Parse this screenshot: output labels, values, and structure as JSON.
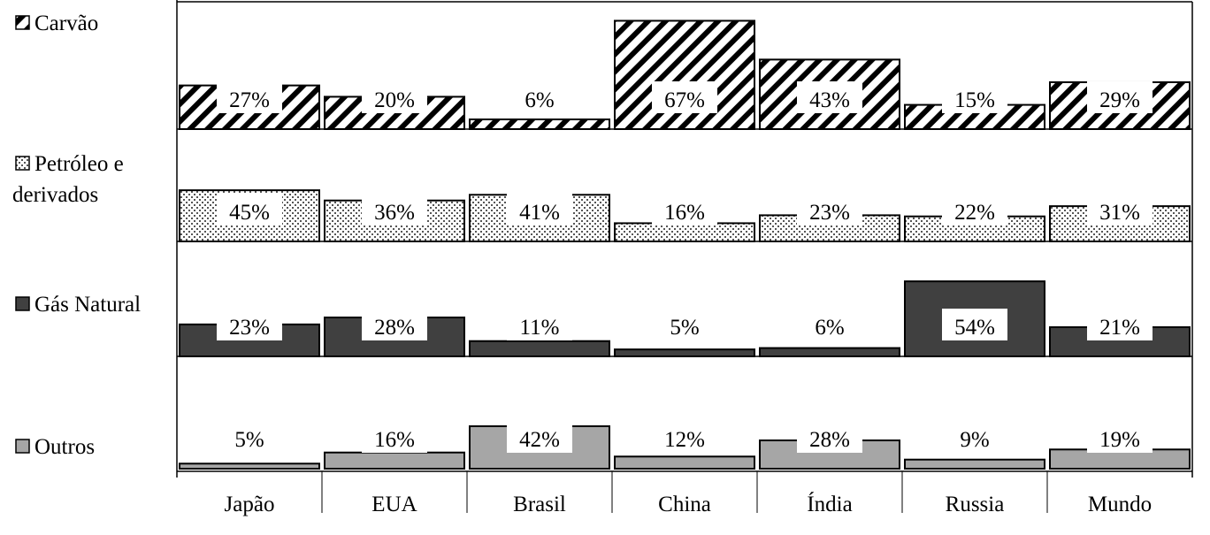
{
  "chart_data": {
    "type": "bar",
    "layout": "small-multiples",
    "categories": [
      "Japão",
      "EUA",
      "Brasil",
      "China",
      "Índia",
      "Russia",
      "Mundo"
    ],
    "series": [
      {
        "name": "Carvão",
        "values": [
          27,
          20,
          6,
          67,
          43,
          15,
          29
        ],
        "labels": [
          "27%",
          "20%",
          "6%",
          "67%",
          "43%",
          "15%",
          "29%"
        ],
        "pattern": "diagonal-hatch",
        "color": "#000000"
      },
      {
        "name": "Petróleo e derivados",
        "values": [
          45,
          36,
          41,
          16,
          23,
          22,
          31
        ],
        "labels": [
          "45%",
          "36%",
          "41%",
          "16%",
          "23%",
          "22%",
          "31%"
        ],
        "pattern": "dots",
        "color": "#000000"
      },
      {
        "name": "Gás Natural",
        "values": [
          23,
          28,
          11,
          5,
          6,
          54,
          21
        ],
        "labels": [
          "23%",
          "28%",
          "11%",
          "5%",
          "6%",
          "54%",
          "21%"
        ],
        "pattern": "solid",
        "color": "#404040"
      },
      {
        "name": "Outros",
        "values": [
          5,
          16,
          42,
          12,
          28,
          9,
          19
        ],
        "labels": [
          "5%",
          "16%",
          "42%",
          "12%",
          "28%",
          "9%",
          "19%"
        ],
        "pattern": "solid",
        "color": "#a6a6a6"
      }
    ],
    "legend": {
      "placement": "left",
      "lines": [
        [
          "Carvão"
        ],
        [
          "Petróleo e",
          "derivados"
        ],
        [
          "Gás Natural"
        ],
        [
          "Outros"
        ]
      ]
    },
    "unit": "%",
    "grid": false
  }
}
